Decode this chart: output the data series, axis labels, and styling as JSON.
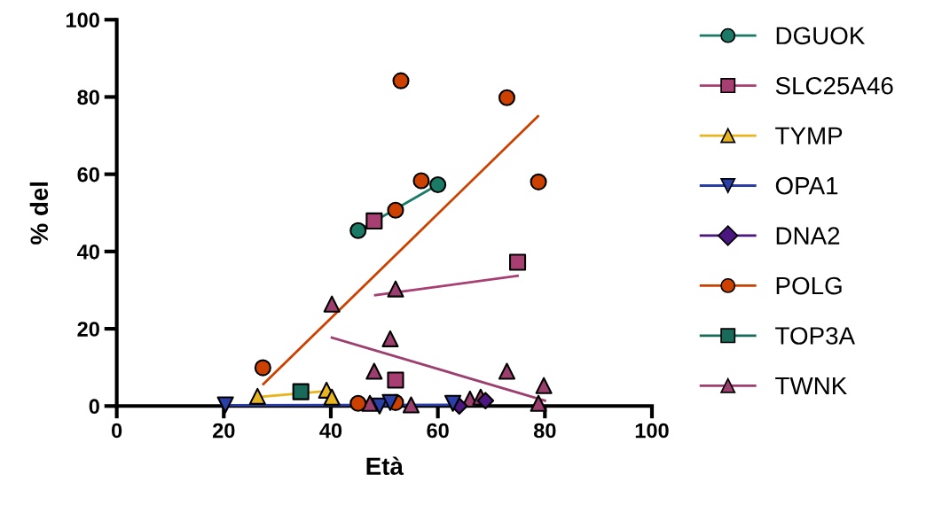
{
  "chart_data": {
    "type": "scatter",
    "xlabel": "Età",
    "ylabel": "% del",
    "xlim": [
      0,
      100
    ],
    "ylim": [
      0,
      100
    ],
    "xticks": [
      0,
      20,
      40,
      60,
      80,
      100
    ],
    "yticks": [
      0,
      20,
      40,
      60,
      80,
      100
    ],
    "grid": false,
    "legend": "right",
    "series": [
      {
        "name": "DGUOK",
        "color": "#1a7a66",
        "marker": "circle",
        "x": [
          45.1,
          60
        ],
        "values": [
          45.4,
          57.3
        ]
      },
      {
        "name": "SLC25A46",
        "color": "#a83f73",
        "marker": "square",
        "x": [
          48.1,
          74.9,
          52.1
        ],
        "values": [
          47.9,
          37.2,
          6.7
        ]
      },
      {
        "name": "TYMP",
        "color": "#e6b520",
        "marker": "triangle",
        "x": [
          26.3,
          39.2,
          40.2
        ],
        "values": [
          2.5,
          4.1,
          2.3
        ]
      },
      {
        "name": "OPA1",
        "color": "#2b3fa8",
        "marker": "triangle_down",
        "x": [
          20.3,
          49.1,
          51.1,
          62.8
        ],
        "values": [
          0.3,
          0,
          0.9,
          0.7
        ]
      },
      {
        "name": "DNA2",
        "color": "#4b1680",
        "marker": "diamond",
        "x": [
          68.9,
          64
        ],
        "values": [
          1.4,
          0
        ]
      },
      {
        "name": "POLG",
        "color": "#cc4100",
        "marker": "circle",
        "x": [
          27.3,
          53.1,
          72.9,
          56.9,
          52.1,
          78.8,
          45.1,
          52.1
        ],
        "values": [
          9.9,
          84.2,
          79.8,
          58.3,
          50.7,
          58.0,
          0.7,
          0.9
        ]
      },
      {
        "name": "TOP3A",
        "color": "#186b5a",
        "marker": "square",
        "x": [
          34.4
        ],
        "values": [
          3.7
        ]
      },
      {
        "name": "TWNK",
        "color": "#9c3f6f",
        "marker": "triangle",
        "x": [
          40.2,
          52.1,
          51.1,
          48.1,
          72.9,
          79.8,
          78.8,
          47.3,
          55,
          66,
          68
        ],
        "values": [
          26.4,
          30.3,
          17.4,
          9,
          9,
          5.3,
          0.7,
          0.7,
          0.3,
          1.8,
          2.3
        ]
      },
      {
        "type": "line",
        "color": "#1a7a66",
        "marker": "none",
        "x": [
          45.1,
          60
        ],
        "values": [
          45.4,
          57.3
        ]
      },
      {
        "type": "line",
        "color": "#a83f73",
        "marker": "none",
        "x": [
          48.3,
          74.9
        ],
        "values": [
          28.7,
          33.7
        ]
      },
      {
        "type": "line",
        "color": "#e6b520",
        "marker": "none",
        "x": [
          26.3,
          39.5
        ],
        "values": [
          2.3,
          3.9
        ]
      },
      {
        "type": "line",
        "color": "#2b3fa8",
        "marker": "none",
        "x": [
          20.3,
          63
        ],
        "values": [
          0.2,
          0.3
        ]
      },
      {
        "type": "line",
        "color": "#cc4100",
        "marker": "none",
        "x": [
          27.4,
          78.7
        ],
        "values": [
          5.7,
          75
        ]
      },
      {
        "type": "line",
        "color": "#9c3f6f",
        "marker": "none",
        "x": [
          40.2,
          80
        ],
        "values": [
          17.7,
          1.4
        ]
      }
    ]
  }
}
